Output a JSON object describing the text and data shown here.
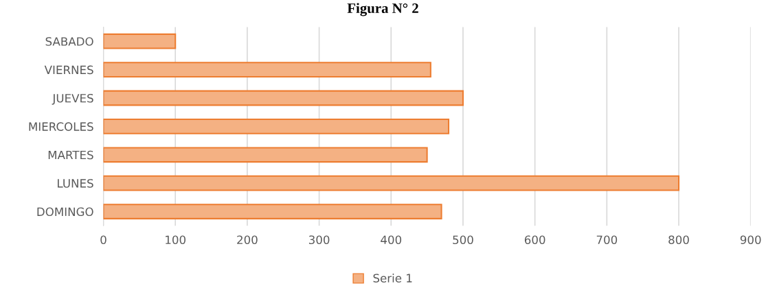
{
  "chart_data": {
    "type": "bar",
    "orientation": "horizontal",
    "title": "Figura N° 2",
    "categories": [
      "SABADO",
      "VIERNES",
      "JUEVES",
      "MIERCOLES",
      "MARTES",
      "LUNES",
      "DOMINGO"
    ],
    "series": [
      {
        "name": "Serie 1",
        "color": "#f4b183",
        "values": [
          100,
          455,
          500,
          480,
          450,
          800,
          470
        ]
      }
    ],
    "xlim": [
      0,
      900
    ],
    "xticks": [
      0,
      100,
      200,
      300,
      400,
      500,
      600,
      700,
      800,
      900
    ],
    "grid": "x",
    "legend": "bottom"
  }
}
